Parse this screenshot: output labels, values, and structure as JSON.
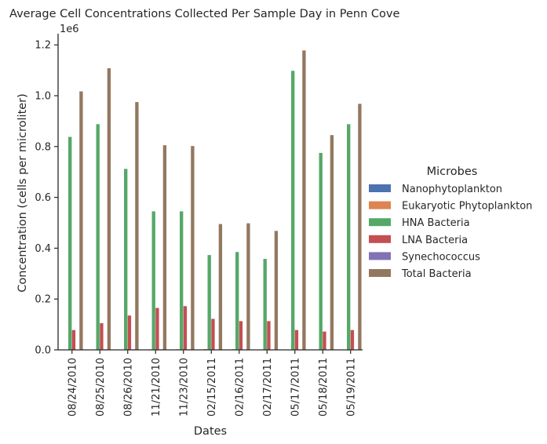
{
  "chart_data": {
    "type": "bar",
    "title": "Average Cell Concentrations Collected Per Sample Day in Penn Cove",
    "xlabel": "Dates",
    "ylabel": "Concentration (cells per microliter)",
    "y_offset_label": "1e6",
    "ylim": [
      0,
      1250000
    ],
    "yticks": [
      "0.0",
      "0.2",
      "0.4",
      "0.6",
      "0.8",
      "1.0",
      "1.2"
    ],
    "ytick_values": [
      0,
      200000,
      400000,
      600000,
      800000,
      1000000,
      1200000
    ],
    "grid": false,
    "legend_position": "right",
    "legend_title": "Microbes",
    "categories": [
      "08/24/2010",
      "08/25/2010",
      "08/26/2010",
      "11/21/2010",
      "11/23/2010",
      "02/15/2011",
      "02/16/2011",
      "02/17/2011",
      "05/17/2011",
      "05/18/2011",
      "05/19/2011"
    ],
    "series": [
      {
        "name": "Nanophytoplankton",
        "color": "#4c72b0",
        "values": [
          500,
          500,
          500,
          600,
          600,
          1200,
          1000,
          800,
          500,
          500,
          500
        ]
      },
      {
        "name": "Eukaryotic Phytoplankton",
        "color": "#dd8452",
        "values": [
          1500,
          1500,
          1500,
          2000,
          2000,
          3000,
          2500,
          2000,
          1500,
          1500,
          1500
        ]
      },
      {
        "name": "HNA Bacteria",
        "color": "#55a868",
        "values": [
          838000,
          888000,
          712000,
          545000,
          545000,
          373000,
          385000,
          358000,
          1098000,
          775000,
          888000
        ]
      },
      {
        "name": "LNA Bacteria",
        "color": "#c44e52",
        "values": [
          78000,
          105000,
          135000,
          165000,
          172000,
          122000,
          113000,
          113000,
          78000,
          72000,
          78000
        ]
      },
      {
        "name": "Synechococcus",
        "color": "#8172b3",
        "values": [
          1500,
          2000,
          2000,
          2000,
          2000,
          1500,
          1500,
          1200,
          1500,
          1500,
          1500
        ]
      },
      {
        "name": "Total Bacteria",
        "color": "#937860",
        "values": [
          1017000,
          1108000,
          975000,
          805000,
          802000,
          495000,
          498000,
          468000,
          1178000,
          845000,
          968000
        ]
      }
    ]
  }
}
